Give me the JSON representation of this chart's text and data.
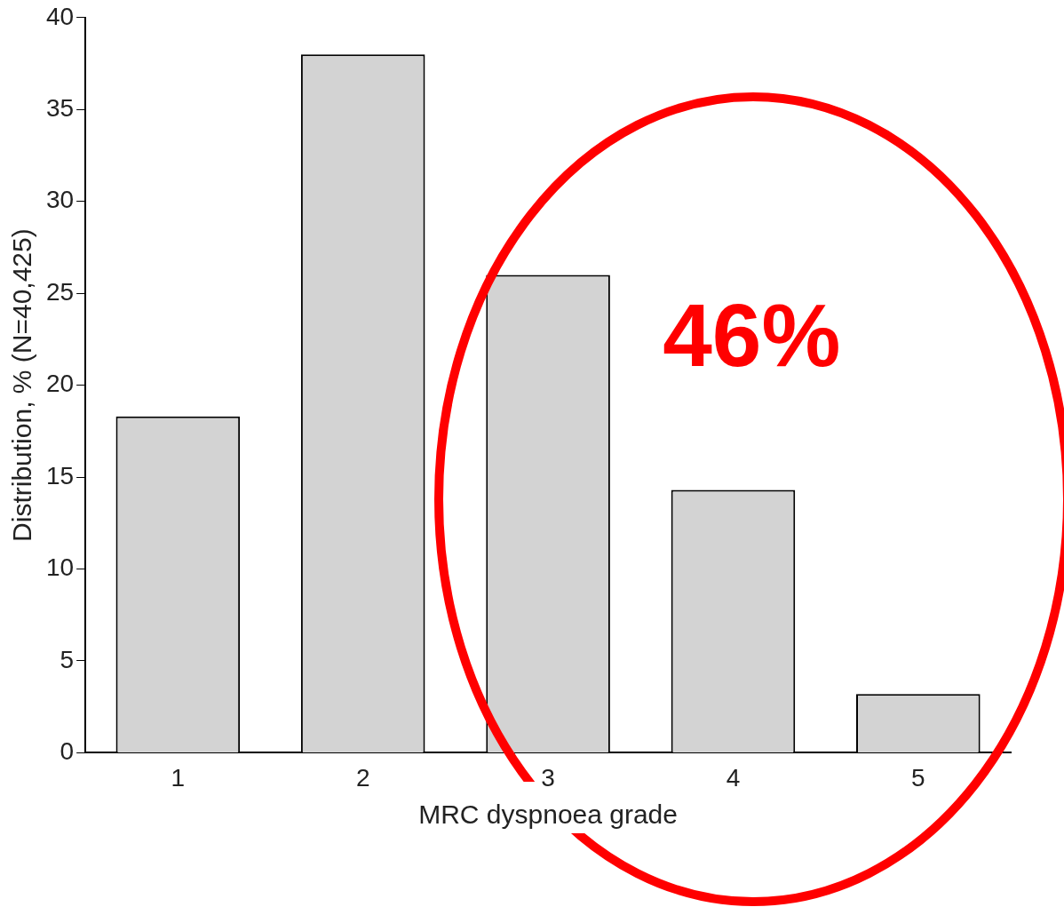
{
  "chart_data": {
    "type": "bar",
    "xlabel": "MRC dyspnoea grade",
    "ylabel": "Distribution, % (N=40,425)",
    "categories": [
      "1",
      "2",
      "3",
      "4",
      "5"
    ],
    "values": [
      18.3,
      38,
      26,
      14.3,
      3.2
    ],
    "color": "#d3d3d3",
    "ylim": [
      0,
      40
    ],
    "yticks": [
      0,
      5,
      10,
      15,
      20,
      25,
      30,
      35,
      40
    ],
    "grid": false,
    "legend": false,
    "annotations": [
      "46%"
    ]
  }
}
